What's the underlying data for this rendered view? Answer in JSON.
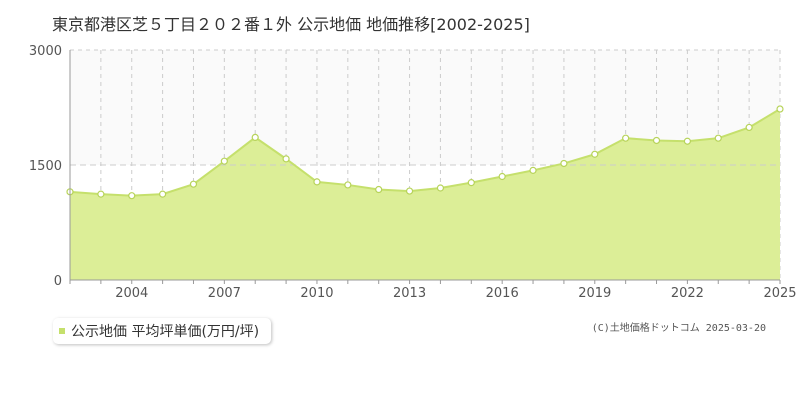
{
  "colors": {
    "fill": "#dcee97",
    "line": "#c5e06c",
    "point_fill": "#ffffff",
    "point_stroke": "#b7d35a",
    "grid": "#cccccc",
    "axis_text": "#555555"
  },
  "chart_data": {
    "type": "area",
    "title": "東京都港区芝５丁目２０２番１外 公示地価 地価推移[2002-2025]",
    "xlabel": "",
    "ylabel": "",
    "xlim": [
      2002,
      2025
    ],
    "ylim": [
      0,
      3000
    ],
    "x_ticks": [
      "2004",
      "2007",
      "2010",
      "2013",
      "2016",
      "2019",
      "2022",
      "2025"
    ],
    "y_ticks": [
      "0",
      "1500",
      "3000"
    ],
    "grid": true,
    "legend_position": "bottom-left",
    "series": [
      {
        "name": "公示地価 平均坪単価(万円/坪)",
        "x": [
          2002,
          2003,
          2004,
          2005,
          2006,
          2007,
          2008,
          2009,
          2010,
          2011,
          2012,
          2013,
          2014,
          2015,
          2016,
          2017,
          2018,
          2019,
          2020,
          2021,
          2022,
          2023,
          2024,
          2025
        ],
        "values": [
          1150,
          1120,
          1100,
          1120,
          1250,
          1550,
          1860,
          1580,
          1280,
          1240,
          1180,
          1160,
          1200,
          1270,
          1350,
          1430,
          1520,
          1640,
          1850,
          1820,
          1810,
          1850,
          1990,
          2230
        ]
      }
    ]
  },
  "footer": {
    "copyright": "(C)土地価格ドットコム 2025-03-20"
  }
}
